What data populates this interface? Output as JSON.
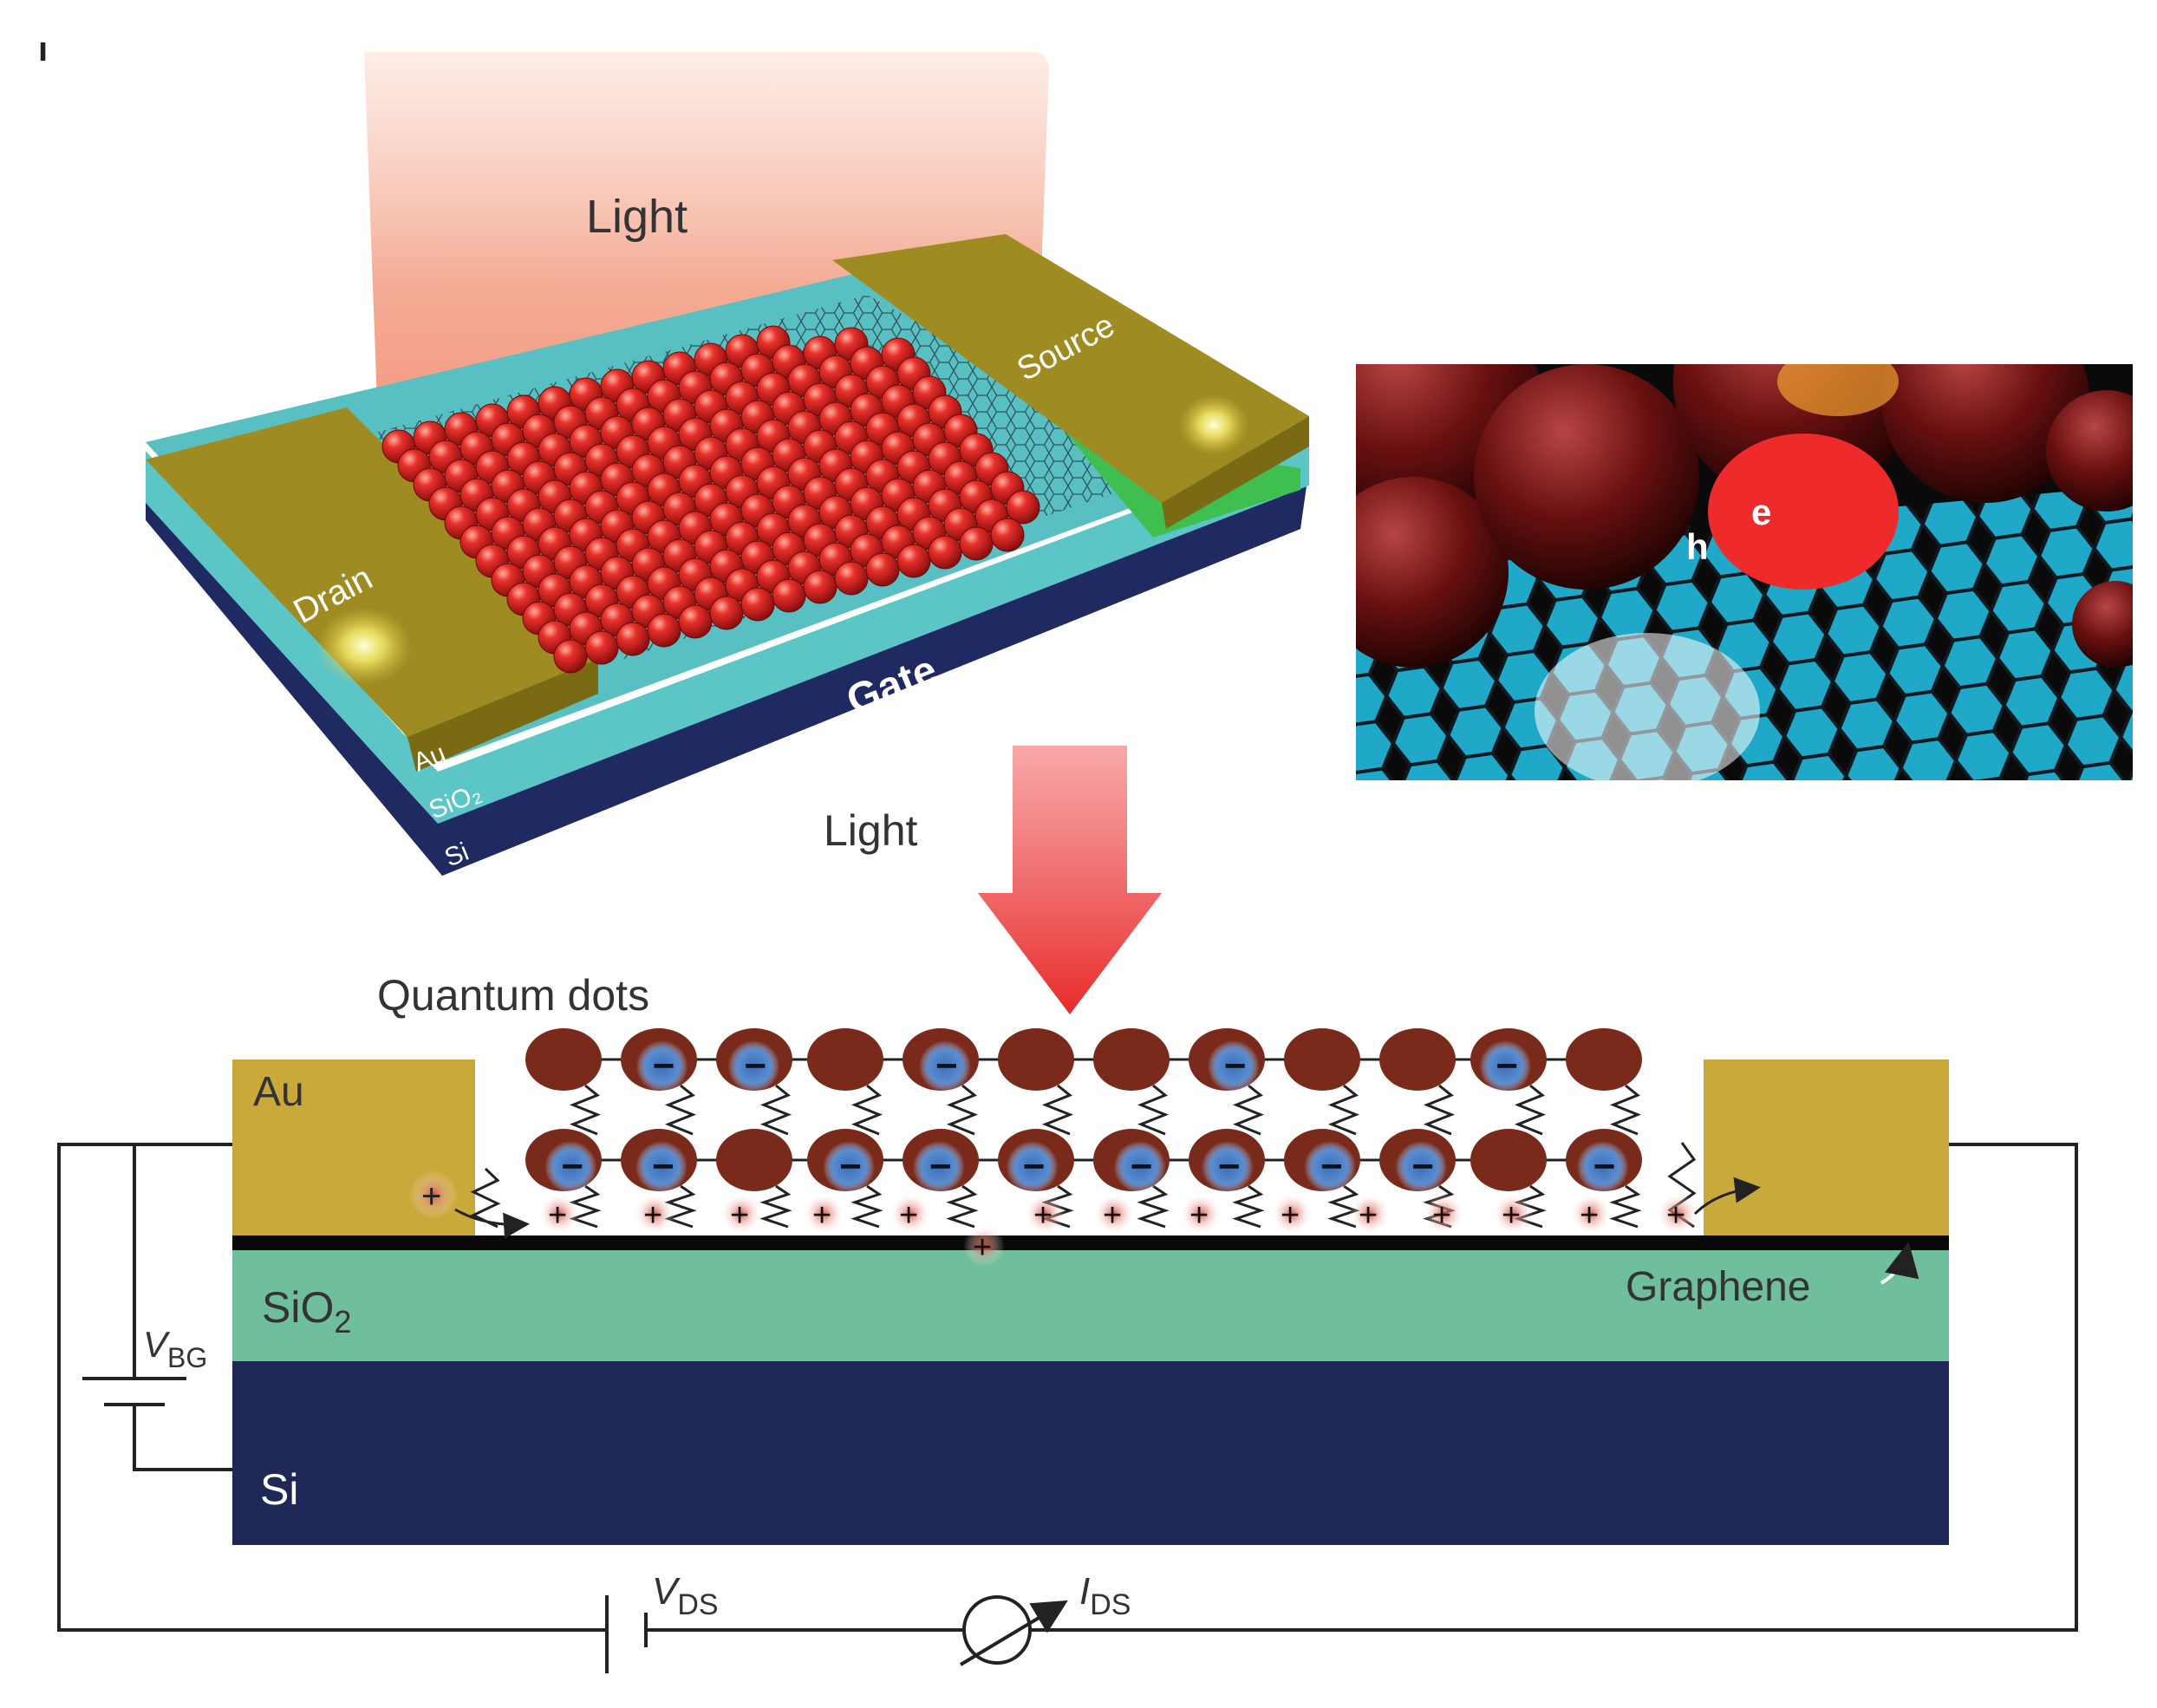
{
  "figure": {
    "panel_mark": "ı"
  },
  "device_3d": {
    "light_label": "Light",
    "drain_label": "Drain",
    "source_label": "Source",
    "gate_label": "Gate",
    "au_label": "Au",
    "sio2_label": "SiO₂",
    "si_label": "Si"
  },
  "inset": {
    "electron_label": "e",
    "hole_label": "h"
  },
  "cross_section": {
    "light_label": "Light",
    "qd_label": "Quantum dots",
    "au_label": "Au",
    "sio2_label": "SiO",
    "sio2_sub": "2",
    "si_label": "Si",
    "graphene_label": "Graphene",
    "vbg_label": "V",
    "vbg_sub": "BG",
    "vds_label": "V",
    "vds_sub": "DS",
    "ids_label": "I",
    "ids_sub": "DS",
    "plus_sign": "+",
    "minus_sign": "−"
  },
  "colors": {
    "gold": "#c9a93a",
    "sio2": "#6fbe9c",
    "si": "#1e2756",
    "qd": "#7a2a1a",
    "electron": "#3b6fb8",
    "light": "#e8432f"
  }
}
